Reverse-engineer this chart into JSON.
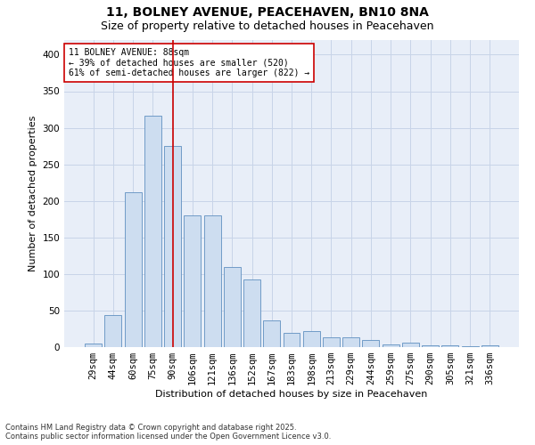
{
  "title_line1": "11, BOLNEY AVENUE, PEACEHAVEN, BN10 8NA",
  "title_line2": "Size of property relative to detached houses in Peacehaven",
  "xlabel": "Distribution of detached houses by size in Peacehaven",
  "ylabel": "Number of detached properties",
  "categories": [
    "29sqm",
    "44sqm",
    "60sqm",
    "75sqm",
    "90sqm",
    "106sqm",
    "121sqm",
    "136sqm",
    "152sqm",
    "167sqm",
    "183sqm",
    "198sqm",
    "213sqm",
    "229sqm",
    "244sqm",
    "259sqm",
    "275sqm",
    "290sqm",
    "305sqm",
    "321sqm",
    "336sqm"
  ],
  "values": [
    5,
    44,
    212,
    316,
    275,
    180,
    180,
    109,
    92,
    37,
    20,
    22,
    14,
    13,
    10,
    4,
    6,
    3,
    2,
    1,
    3
  ],
  "bar_color": "#cdddf0",
  "bar_edge_color": "#6090c0",
  "vline_x_index": 4,
  "vline_color": "#cc0000",
  "annotation_text": "11 BOLNEY AVENUE: 88sqm\n← 39% of detached houses are smaller (520)\n61% of semi-detached houses are larger (822) →",
  "annotation_box_color": "#cc0000",
  "ylim": [
    0,
    420
  ],
  "yticks": [
    0,
    50,
    100,
    150,
    200,
    250,
    300,
    350,
    400
  ],
  "grid_color": "#c8d4e8",
  "bg_color": "#e8eef8",
  "footnote": "Contains HM Land Registry data © Crown copyright and database right 2025.\nContains public sector information licensed under the Open Government Licence v3.0.",
  "title_fontsize": 10,
  "subtitle_fontsize": 9,
  "axis_fontsize": 8,
  "tick_fontsize": 7.5,
  "annot_fontsize": 7,
  "footnote_fontsize": 6,
  "bar_width": 0.85
}
